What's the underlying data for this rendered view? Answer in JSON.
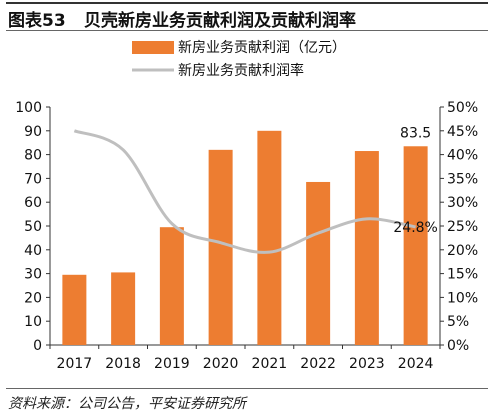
{
  "header": {
    "figure_label": "图表53",
    "title": "贝壳新房业务贡献利润及贡献利润率"
  },
  "source": "资料来源：公司公告，平安证券研究所",
  "colors": {
    "bar": "#ED7D31",
    "line": "#BFBFBF",
    "axis": "#333333"
  },
  "chart_data": {
    "type": "bar",
    "categories": [
      "2017",
      "2018",
      "2019",
      "2020",
      "2021",
      "2022",
      "2023",
      "2024"
    ],
    "series": [
      {
        "name": "新房业务贡献利润（亿元）",
        "type": "bar",
        "axis": "left",
        "values": [
          29.5,
          30.5,
          49.5,
          82.0,
          90.0,
          68.5,
          81.5,
          83.5
        ]
      },
      {
        "name": "新房业务贡献利润率",
        "type": "line",
        "axis": "right",
        "values": [
          0.45,
          0.41,
          0.255,
          0.215,
          0.195,
          0.235,
          0.265,
          0.248
        ]
      }
    ],
    "y_left": {
      "min": 0,
      "max": 100,
      "step": 10,
      "ticks": [
        "0",
        "10",
        "20",
        "30",
        "40",
        "50",
        "60",
        "70",
        "80",
        "90",
        "100"
      ]
    },
    "y_right": {
      "min": 0,
      "max": 0.5,
      "step": 0.05,
      "ticks": [
        "0%",
        "5%",
        "10%",
        "15%",
        "20%",
        "25%",
        "30%",
        "35%",
        "40%",
        "45%",
        "50%"
      ]
    },
    "annotations": [
      {
        "text": "83.5",
        "category": "2024",
        "series": 0
      },
      {
        "text": "24.8%",
        "category": "2024",
        "series": 1
      }
    ],
    "legend": {
      "position": "top-center"
    },
    "grid": false
  }
}
